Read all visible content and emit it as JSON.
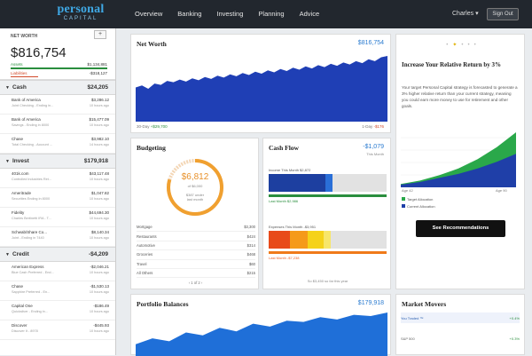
{
  "header": {
    "logo_line1": "personal",
    "logo_line2": "CAPITAL",
    "nav": [
      "Overview",
      "Banking",
      "Investing",
      "Planning",
      "Advice"
    ],
    "user": "Charles ▾",
    "signout": "Sign Out"
  },
  "sidebar": {
    "net_worth_label": "NET WORTH",
    "plus": "+",
    "net_worth_value": "$816,754",
    "assets_label": "Assets",
    "assets_value": "$1,134,881",
    "liabilities_label": "Liabilities",
    "liabilities_value": "-$318,127",
    "sections": [
      {
        "name": "Cash",
        "total": "$24,205",
        "accounts": [
          {
            "name": "Bank of America",
            "sub": "Joint Checking - Ending in...",
            "value": "$3,286.12",
            "time": "10 hours ago"
          },
          {
            "name": "Bank of America",
            "sub": "Savings - Ending in 8000",
            "value": "$15,477.09",
            "time": "10 hours ago"
          },
          {
            "name": "Chase",
            "sub": "Total Checking - Account ...",
            "value": "$3,982.10",
            "time": "14 hours ago"
          }
        ]
      },
      {
        "name": "Invest",
        "total": "$179,918",
        "accounts": [
          {
            "name": "401k.com",
            "sub": "Controlled Industries Ret...",
            "value": "$43,117.48",
            "time": "10 hours ago"
          },
          {
            "name": "Ameritrade",
            "sub": "Securities Ending in 8000",
            "value": "$1,047.82",
            "time": "10 hours ago"
          },
          {
            "name": "Fidelity",
            "sub": "Charles Bertinetti IRA - T...",
            "value": "$44,694.30",
            "time": "10 hours ago"
          },
          {
            "name": "Schwab/Share Co...",
            "sub": "Joint - Ending in 7440",
            "value": "$8,140.34",
            "time": "10 hours ago"
          }
        ]
      },
      {
        "name": "Credit",
        "total": "-$4,209",
        "accounts": [
          {
            "name": "American Express",
            "sub": "Blue Cash Preferred - End...",
            "value": "-$2,046.21",
            "time": "10 hours ago"
          },
          {
            "name": "Chase",
            "sub": "Sapphire Preferred - En...",
            "value": "-$1,530.13",
            "time": "10 hours ago"
          },
          {
            "name": "Capital One",
            "sub": "Quicksilver - Ending in...",
            "value": "-$186.49",
            "time": "10 hours ago"
          },
          {
            "name": "Discover",
            "sub": "Discover It - 8978",
            "value": "-$445.93",
            "time": "10 hours ago"
          }
        ]
      }
    ]
  },
  "net_worth_card": {
    "title": "Net Worth",
    "value": "$816,754",
    "footer_left": "30-Day",
    "footer_left_value": "+$29,700",
    "footer_right": "1-Day",
    "footer_right_value": "-$176"
  },
  "budgeting": {
    "title": "Budgeting",
    "amount": "$6,812",
    "subtitle": "of $6,000",
    "note_line1": "$387 under",
    "note_line2": "last month",
    "rows": [
      {
        "label": "Mortgage",
        "value": "$3,300"
      },
      {
        "label": "Restaurants",
        "value": "$424"
      },
      {
        "label": "Automotive",
        "value": "$314"
      },
      {
        "label": "Groceries",
        "value": "$468"
      },
      {
        "label": "Travel",
        "value": "$60"
      },
      {
        "label": "All Others",
        "value": "$215"
      }
    ],
    "pager": "‹  1 of 2  ›"
  },
  "cash_flow": {
    "title": "Cash Flow",
    "value": "-$1,079",
    "value_sub": "This Month",
    "income_label": "Income This Month $2,872",
    "income_last": "Last Month $2,986",
    "expenses_label": "Expenses This Month -$3,951",
    "expenses_last": "Last Month -$7,238",
    "footer": "So $3,450 so far this year"
  },
  "relative_return": {
    "title": "Increase Your Relative Return by 3%",
    "body": "Your target Personal Capital strategy is forecasted to generate a 3% higher relative return than your current strategy, meaning you could earn more money to use for retirement and other goals.",
    "axis_left": "Age 42",
    "axis_right": "Age 90",
    "legend_target": "Target Allocation",
    "legend_current": "Current Allocation",
    "button": "See Recommendations",
    "colors": {
      "target": "#2aa84a",
      "current": "#1f3fa8"
    }
  },
  "portfolio": {
    "title": "Portfolio Balances",
    "value": "$179,918"
  },
  "market_movers": {
    "title": "Market Movers",
    "rows": [
      {
        "name": "You Traded ™",
        "change": "+0.4%"
      },
      {
        "name": "S&P 500",
        "change": "+0.3%"
      }
    ]
  },
  "chart_data": [
    {
      "type": "area",
      "title": "Net Worth",
      "values": [
        52,
        55,
        50,
        58,
        56,
        62,
        60,
        64,
        61,
        66,
        63,
        68,
        65,
        70,
        67,
        72,
        69,
        74,
        71,
        76,
        73,
        78,
        75,
        80,
        77,
        82,
        79,
        84,
        81,
        86,
        83,
        88,
        85,
        90,
        87,
        92,
        89,
        95,
        92,
        98,
        100
      ]
    },
    {
      "type": "area",
      "title": "Portfolio Balances",
      "values": [
        20,
        30,
        25,
        40,
        35,
        48,
        42,
        55,
        50,
        60,
        58,
        66,
        62,
        70,
        68,
        74
      ]
    },
    {
      "type": "area",
      "title": "Increase Your Relative Return by 3%",
      "xlabel": "",
      "series": [
        {
          "name": "Target Allocation",
          "values": [
            5,
            10,
            18,
            28,
            42,
            60,
            82
          ]
        },
        {
          "name": "Current Allocation",
          "values": [
            4,
            8,
            14,
            20,
            28,
            38,
            50
          ]
        }
      ]
    }
  ]
}
